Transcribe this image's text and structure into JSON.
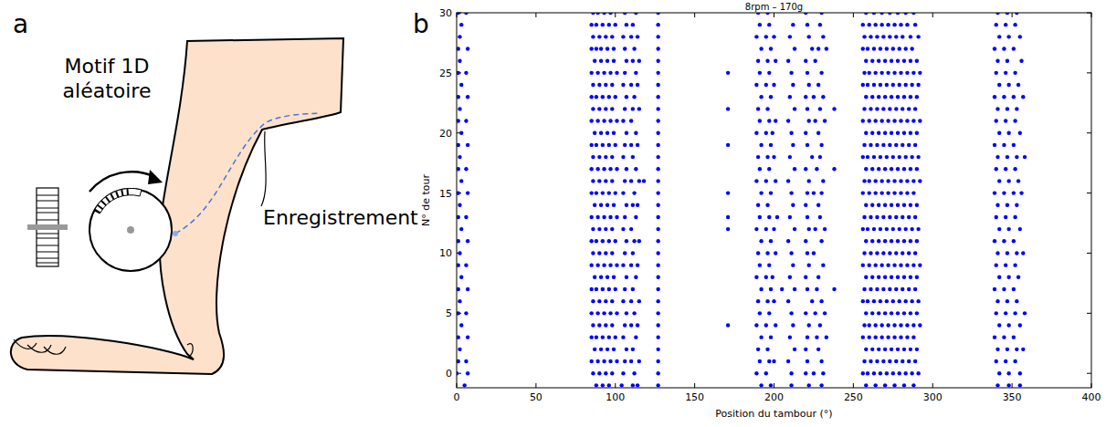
{
  "diagram": {
    "panel_label": "a",
    "pattern_label": [
      "Motif 1D",
      "aléatoire"
    ],
    "recording_label": "Enregistrement"
  },
  "chart_data": {
    "panel_label": "b",
    "type": "scatter",
    "title": "8rpm – 170g",
    "x_label": "Position du tambour (°)",
    "y_label": "N° de tour",
    "xlim": [
      0,
      400
    ],
    "ylim": [
      -1.2,
      30
    ],
    "xticks": [
      0,
      50,
      100,
      150,
      200,
      250,
      300,
      350,
      400
    ],
    "yticks": [
      0,
      5,
      10,
      15,
      20,
      25,
      30
    ],
    "color": "#0000ff",
    "marker": "dot",
    "series": [
      {
        "turn": 30,
        "x": [
          1,
          6,
          86,
          89,
          93,
          97,
          106,
          113,
          127,
          190,
          196,
          220,
          230,
          258,
          263,
          268,
          273,
          278,
          283,
          288,
          341,
          347,
          353
        ]
      },
      {
        "turn": 29,
        "x": [
          3,
          85,
          88,
          92,
          96,
          100,
          107,
          111,
          127,
          191,
          197,
          212,
          221,
          229,
          256,
          260,
          264,
          268,
          272,
          276,
          280,
          284,
          289,
          340,
          346,
          352
        ]
      },
      {
        "turn": 28,
        "x": [
          2,
          86,
          90,
          94,
          98,
          105,
          110,
          114,
          127,
          189,
          195,
          200,
          210,
          222,
          231,
          257,
          261,
          265,
          269,
          273,
          277,
          281,
          286,
          291,
          342,
          348,
          355
        ]
      },
      {
        "turn": 27,
        "x": [
          1,
          7,
          85,
          88,
          91,
          95,
          99,
          106,
          112,
          127,
          192,
          198,
          213,
          224,
          228,
          233,
          256,
          259,
          263,
          267,
          271,
          275,
          279,
          283,
          287,
          339,
          345,
          351
        ]
      },
      {
        "turn": 26,
        "x": [
          2,
          87,
          91,
          95,
          99,
          107,
          111,
          115,
          127,
          190,
          196,
          201,
          209,
          220,
          226,
          258,
          262,
          266,
          270,
          274,
          278,
          282,
          286,
          290,
          341,
          347,
          356
        ]
      },
      {
        "turn": 25,
        "x": [
          1,
          6,
          85,
          89,
          93,
          97,
          101,
          106,
          113,
          127,
          171,
          191,
          197,
          211,
          221,
          230,
          257,
          260,
          264,
          268,
          272,
          276,
          280,
          284,
          288,
          292,
          340,
          346,
          352
        ]
      },
      {
        "turn": 24,
        "x": [
          3,
          86,
          90,
          94,
          98,
          105,
          110,
          114,
          127,
          189,
          195,
          200,
          212,
          222,
          228,
          256,
          259,
          263,
          267,
          271,
          275,
          279,
          283,
          287,
          291,
          342,
          348,
          354
        ]
      },
      {
        "turn": 23,
        "x": [
          1,
          7,
          85,
          88,
          92,
          96,
          100,
          107,
          112,
          127,
          192,
          198,
          210,
          220,
          225,
          231,
          258,
          262,
          266,
          270,
          274,
          278,
          282,
          286,
          290,
          339,
          345,
          351,
          357
        ]
      },
      {
        "turn": 22,
        "x": [
          2,
          86,
          90,
          94,
          98,
          106,
          111,
          115,
          127,
          171,
          190,
          196,
          213,
          221,
          229,
          238,
          257,
          261,
          265,
          269,
          273,
          277,
          281,
          285,
          289,
          341,
          347,
          353
        ]
      },
      {
        "turn": 21,
        "x": [
          1,
          6,
          85,
          89,
          93,
          97,
          101,
          105,
          110,
          127,
          191,
          197,
          201,
          209,
          222,
          226,
          232,
          256,
          260,
          264,
          268,
          272,
          276,
          280,
          284,
          288,
          292,
          340,
          346,
          352
        ]
      },
      {
        "turn": 20,
        "x": [
          3,
          87,
          91,
          95,
          99,
          107,
          113,
          127,
          189,
          195,
          199,
          211,
          220,
          228,
          258,
          262,
          266,
          270,
          274,
          278,
          282,
          286,
          290,
          342,
          348,
          355
        ]
      },
      {
        "turn": 19,
        "x": [
          1,
          7,
          85,
          88,
          92,
          96,
          100,
          106,
          110,
          114,
          127,
          171,
          192,
          198,
          212,
          221,
          230,
          257,
          261,
          265,
          269,
          273,
          277,
          281,
          285,
          289,
          339,
          345,
          351
        ]
      },
      {
        "turn": 18,
        "x": [
          2,
          86,
          90,
          94,
          98,
          105,
          111,
          127,
          190,
          196,
          200,
          210,
          224,
          229,
          256,
          259,
          263,
          267,
          271,
          275,
          279,
          283,
          287,
          291,
          341,
          347,
          353,
          358
        ]
      },
      {
        "turn": 17,
        "x": [
          1,
          6,
          85,
          89,
          93,
          97,
          101,
          107,
          113,
          127,
          191,
          197,
          213,
          220,
          227,
          238,
          258,
          262,
          266,
          270,
          274,
          278,
          282,
          286,
          290,
          340,
          346,
          352
        ]
      },
      {
        "turn": 16,
        "x": [
          3,
          86,
          90,
          94,
          98,
          106,
          110,
          115,
          118,
          127,
          189,
          195,
          201,
          209,
          222,
          231,
          257,
          260,
          264,
          268,
          272,
          276,
          280,
          284,
          288,
          292,
          342,
          348,
          354
        ]
      },
      {
        "turn": 15,
        "x": [
          1,
          7,
          85,
          88,
          92,
          96,
          100,
          105,
          112,
          127,
          171,
          192,
          198,
          211,
          221,
          225,
          230,
          256,
          260,
          264,
          268,
          272,
          276,
          280,
          284,
          288,
          339,
          345,
          351,
          356
        ]
      },
      {
        "turn": 14,
        "x": [
          2,
          87,
          91,
          95,
          99,
          107,
          111,
          114,
          127,
          190,
          196,
          212,
          220,
          228,
          258,
          262,
          266,
          270,
          274,
          278,
          282,
          286,
          290,
          341,
          347,
          353
        ]
      },
      {
        "turn": 13,
        "x": [
          1,
          6,
          85,
          89,
          93,
          97,
          101,
          106,
          113,
          127,
          171,
          191,
          197,
          202,
          210,
          221,
          229,
          257,
          261,
          265,
          269,
          273,
          277,
          281,
          285,
          289,
          340,
          346,
          352
        ]
      },
      {
        "turn": 12,
        "x": [
          3,
          86,
          90,
          94,
          98,
          105,
          110,
          127,
          171,
          189,
          195,
          200,
          213,
          222,
          226,
          232,
          256,
          259,
          263,
          267,
          271,
          275,
          279,
          283,
          287,
          291,
          342,
          348,
          355
        ]
      },
      {
        "turn": 11,
        "x": [
          1,
          7,
          85,
          88,
          92,
          96,
          100,
          107,
          112,
          115,
          127,
          192,
          198,
          209,
          220,
          230,
          258,
          262,
          266,
          270,
          274,
          278,
          282,
          286,
          290,
          339,
          345,
          351
        ]
      },
      {
        "turn": 10,
        "x": [
          2,
          86,
          90,
          94,
          98,
          106,
          111,
          127,
          190,
          196,
          201,
          211,
          221,
          225,
          257,
          261,
          265,
          269,
          273,
          277,
          281,
          285,
          289,
          341,
          347,
          353,
          357
        ]
      },
      {
        "turn": 9,
        "x": [
          1,
          6,
          85,
          89,
          93,
          97,
          101,
          105,
          110,
          114,
          127,
          191,
          197,
          212,
          222,
          231,
          256,
          260,
          264,
          268,
          272,
          276,
          280,
          284,
          288,
          292,
          340,
          346,
          352
        ]
      },
      {
        "turn": 8,
        "x": [
          3,
          87,
          91,
          95,
          99,
          107,
          113,
          127,
          189,
          195,
          199,
          210,
          220,
          228,
          258,
          262,
          266,
          270,
          274,
          278,
          282,
          286,
          290,
          342,
          348,
          354
        ]
      },
      {
        "turn": 7,
        "x": [
          1,
          7,
          85,
          88,
          92,
          96,
          100,
          106,
          111,
          127,
          192,
          198,
          205,
          213,
          221,
          227,
          238,
          257,
          261,
          265,
          269,
          273,
          277,
          281,
          285,
          289,
          339,
          345,
          351
        ]
      },
      {
        "turn": 6,
        "x": [
          2,
          86,
          90,
          94,
          98,
          105,
          110,
          115,
          127,
          190,
          196,
          200,
          209,
          224,
          230,
          256,
          259,
          263,
          267,
          271,
          275,
          279,
          283,
          287,
          291,
          341,
          347,
          353
        ]
      },
      {
        "turn": 5,
        "x": [
          1,
          6,
          85,
          89,
          93,
          97,
          101,
          107,
          112,
          127,
          191,
          197,
          211,
          220,
          226,
          232,
          258,
          262,
          266,
          270,
          274,
          278,
          282,
          286,
          290,
          340,
          346,
          352,
          358
        ]
      },
      {
        "turn": 4,
        "x": [
          3,
          86,
          90,
          94,
          98,
          106,
          110,
          114,
          127,
          171,
          189,
          195,
          201,
          212,
          222,
          229,
          257,
          260,
          264,
          268,
          272,
          276,
          280,
          284,
          288,
          292,
          342,
          348,
          355
        ]
      },
      {
        "turn": 3,
        "x": [
          1,
          7,
          85,
          88,
          92,
          96,
          100,
          105,
          113,
          127,
          192,
          198,
          210,
          221,
          227,
          233,
          256,
          260,
          264,
          268,
          272,
          276,
          280,
          284,
          288,
          339,
          345,
          351
        ]
      },
      {
        "turn": 2,
        "x": [
          2,
          87,
          91,
          95,
          99,
          107,
          111,
          127,
          190,
          196,
          213,
          220,
          228,
          258,
          262,
          266,
          270,
          274,
          278,
          282,
          286,
          290,
          341,
          347,
          353,
          357
        ]
      },
      {
        "turn": 1,
        "x": [
          1,
          6,
          85,
          89,
          93,
          97,
          101,
          106,
          110,
          115,
          127,
          191,
          197,
          200,
          209,
          221,
          230,
          257,
          261,
          265,
          269,
          273,
          277,
          281,
          285,
          289,
          340,
          346,
          352
        ]
      },
      {
        "turn": 0,
        "x": [
          0,
          7,
          86,
          90,
          94,
          98,
          105,
          112,
          127,
          189,
          195,
          211,
          220,
          225,
          231,
          256,
          259,
          263,
          267,
          271,
          275,
          279,
          283,
          287,
          291,
          342,
          348,
          355
        ]
      },
      {
        "turn": -1,
        "x": [
          5,
          88,
          92,
          96,
          104,
          111,
          114,
          127,
          192,
          198,
          211,
          222,
          230,
          258,
          264,
          270,
          276,
          282,
          288,
          341,
          348,
          355
        ]
      }
    ]
  }
}
